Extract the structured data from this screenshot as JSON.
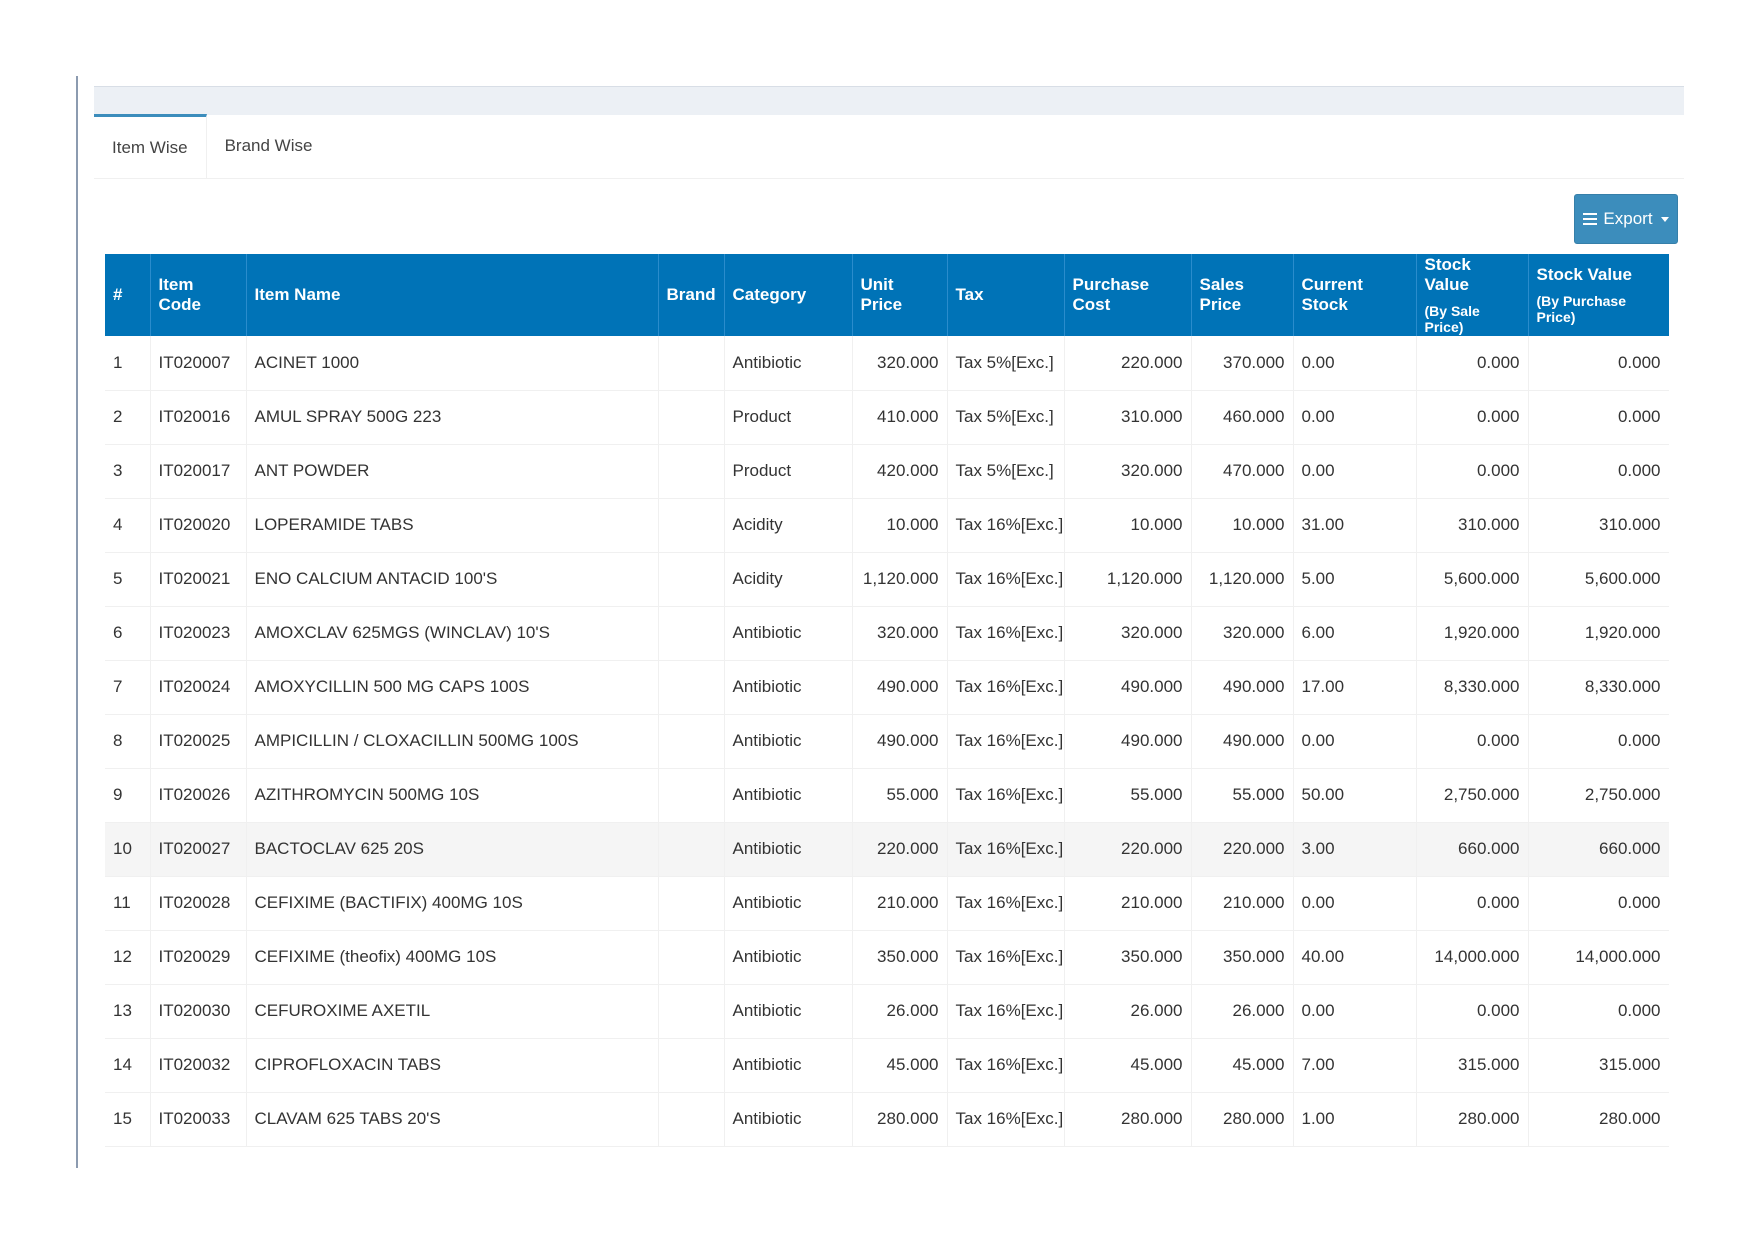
{
  "tabs": [
    {
      "label": "Item Wise",
      "active": true
    },
    {
      "label": "Brand Wise",
      "active": false
    }
  ],
  "export_button": {
    "label": "Export",
    "icon": "bars-icon",
    "caret": "caret-down-icon"
  },
  "colors": {
    "header_bg": "#0073b7",
    "button_bg": "#3c8dbc",
    "tab_accent": "#3c8dbc"
  },
  "table": {
    "headers": {
      "num": "#",
      "item_code": "Item Code",
      "item_name": "Item Name",
      "brand": "Brand",
      "category": "Category",
      "unit_price": "Unit Price",
      "tax": "Tax",
      "purchase_cost": "Purchase Cost",
      "sales_price": "Sales Price",
      "current_stock": "Current Stock",
      "stock_value_sale": "Stock Value",
      "stock_value_sale_sub": "(By Sale Price)",
      "stock_value_purchase": "Stock Value",
      "stock_value_purchase_sub": "(By Purchase Price)"
    },
    "rows": [
      [
        "1",
        "IT020007",
        "ACINET 1000",
        "",
        "Antibiotic",
        "320.000",
        "Tax 5%[Exc.]",
        "220.000",
        "370.000",
        "0.00",
        "0.000",
        "0.000"
      ],
      [
        "2",
        "IT020016",
        "AMUL SPRAY 500G 223",
        "",
        "Product",
        "410.000",
        "Tax 5%[Exc.]",
        "310.000",
        "460.000",
        "0.00",
        "0.000",
        "0.000"
      ],
      [
        "3",
        "IT020017",
        "ANT POWDER",
        "",
        "Product",
        "420.000",
        "Tax 5%[Exc.]",
        "320.000",
        "470.000",
        "0.00",
        "0.000",
        "0.000"
      ],
      [
        "4",
        "IT020020",
        "LOPERAMIDE TABS",
        "",
        "Acidity",
        "10.000",
        "Tax 16%[Exc.]",
        "10.000",
        "10.000",
        "31.00",
        "310.000",
        "310.000"
      ],
      [
        "5",
        "IT020021",
        "ENO CALCIUM ANTACID 100'S",
        "",
        "Acidity",
        "1,120.000",
        "Tax 16%[Exc.]",
        "1,120.000",
        "1,120.000",
        "5.00",
        "5,600.000",
        "5,600.000"
      ],
      [
        "6",
        "IT020023",
        "AMOXCLAV 625MGS (WINCLAV) 10'S",
        "",
        "Antibiotic",
        "320.000",
        "Tax 16%[Exc.]",
        "320.000",
        "320.000",
        "6.00",
        "1,920.000",
        "1,920.000"
      ],
      [
        "7",
        "IT020024",
        "AMOXYCILLIN 500 MG CAPS 100S",
        "",
        "Antibiotic",
        "490.000",
        "Tax 16%[Exc.]",
        "490.000",
        "490.000",
        "17.00",
        "8,330.000",
        "8,330.000"
      ],
      [
        "8",
        "IT020025",
        "AMPICILLIN / CLOXACILLIN 500MG 100S",
        "",
        "Antibiotic",
        "490.000",
        "Tax 16%[Exc.]",
        "490.000",
        "490.000",
        "0.00",
        "0.000",
        "0.000"
      ],
      [
        "9",
        "IT020026",
        "AZITHROMYCIN 500MG 10S",
        "",
        "Antibiotic",
        "55.000",
        "Tax 16%[Exc.]",
        "55.000",
        "55.000",
        "50.00",
        "2,750.000",
        "2,750.000"
      ],
      [
        "10",
        "IT020027",
        "BACTOCLAV 625 20S",
        "",
        "Antibiotic",
        "220.000",
        "Tax 16%[Exc.]",
        "220.000",
        "220.000",
        "3.00",
        "660.000",
        "660.000"
      ],
      [
        "11",
        "IT020028",
        "CEFIXIME (BACTIFIX) 400MG 10S",
        "",
        "Antibiotic",
        "210.000",
        "Tax 16%[Exc.]",
        "210.000",
        "210.000",
        "0.00",
        "0.000",
        "0.000"
      ],
      [
        "12",
        "IT020029",
        "CEFIXIME (theofix) 400MG 10S",
        "",
        "Antibiotic",
        "350.000",
        "Tax 16%[Exc.]",
        "350.000",
        "350.000",
        "40.00",
        "14,000.000",
        "14,000.000"
      ],
      [
        "13",
        "IT020030",
        "CEFUROXIME AXETIL",
        "",
        "Antibiotic",
        "26.000",
        "Tax 16%[Exc.]",
        "26.000",
        "26.000",
        "0.00",
        "0.000",
        "0.000"
      ],
      [
        "14",
        "IT020032",
        "CIPROFLOXACIN TABS",
        "",
        "Antibiotic",
        "45.000",
        "Tax 16%[Exc.]",
        "45.000",
        "45.000",
        "7.00",
        "315.000",
        "315.000"
      ],
      [
        "15",
        "IT020033",
        "CLAVAM 625 TABS 20'S",
        "",
        "Antibiotic",
        "280.000",
        "Tax 16%[Exc.]",
        "280.000",
        "280.000",
        "1.00",
        "280.000",
        "280.000"
      ]
    ]
  }
}
